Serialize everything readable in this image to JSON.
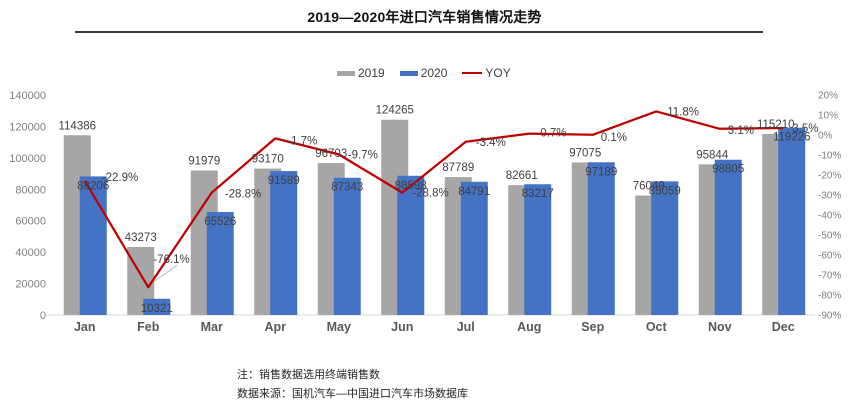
{
  "title": "2019—2020年进口汽车销售情况走势",
  "legend": [
    {
      "label": "2019",
      "color": "#A6A6A6",
      "type": "bar"
    },
    {
      "label": "2020",
      "color": "#4472C4",
      "type": "bar"
    },
    {
      "label": "YOY",
      "color": "#C00000",
      "type": "line"
    }
  ],
  "notes": {
    "line1": "注：销售数据选用终端销售数",
    "line2": "数据来源：国机汽车—中国进口汽车市场数据库"
  },
  "colors": {
    "bar_2019": "#A6A6A6",
    "bar_2020": "#4472C4",
    "yoy_line": "#C00000",
    "axis_text": "#808080",
    "month_text": "#595959",
    "data_label": "#404040",
    "baseline": "#D9D9D9",
    "leader": "#BFBFBF"
  },
  "chart_data": {
    "type": "bar",
    "subtype": "grouped-bars-with-line",
    "title": "2019—2020年进口汽车销售情况走势",
    "categories": [
      "Jan",
      "Feb",
      "Mar",
      "Apr",
      "May",
      "Jun",
      "Jul",
      "Aug",
      "Sep",
      "Oct",
      "Nov",
      "Dec"
    ],
    "series": [
      {
        "name": "2019",
        "type": "bar",
        "axis": "left",
        "color": "#A6A6A6",
        "values": [
          114386,
          43273,
          91979,
          93170,
          96703,
          124265,
          87789,
          82661,
          97075,
          76049,
          95844,
          115210
        ]
      },
      {
        "name": "2020",
        "type": "bar",
        "axis": "left",
        "color": "#4472C4",
        "values": [
          88206,
          10321,
          65526,
          91589,
          87343,
          88598,
          84791,
          83217,
          97189,
          85059,
          98805,
          119226
        ]
      },
      {
        "name": "YOY",
        "type": "line",
        "axis": "right",
        "color": "#C00000",
        "values": [
          -22.9,
          -76.1,
          -28.8,
          -1.7,
          -9.7,
          -28.8,
          -3.4,
          0.7,
          0.1,
          11.8,
          3.1,
          3.5
        ],
        "labels": [
          "-22.9%",
          "-76.1%",
          "-28.8%",
          "-1.7%",
          "-9.7%",
          "-28.8%",
          "-3.4%",
          "0.7%",
          "0.1%",
          "11.8%",
          "3.1%",
          "3.5%"
        ]
      }
    ],
    "left_axis": {
      "min": 0,
      "max": 140000,
      "step": 20000,
      "ticks": [
        "0",
        "20000",
        "40000",
        "60000",
        "80000",
        "100000",
        "120000",
        "140000"
      ]
    },
    "right_axis": {
      "min": -90,
      "max": 20,
      "step": 10,
      "ticks": [
        "20%",
        "10%",
        "0%",
        "-10%",
        "-20%",
        "-30%",
        "-40%",
        "-50%",
        "-60%",
        "-70%",
        "-80%",
        "-90%"
      ]
    },
    "grid": false,
    "legend_position": "top"
  }
}
